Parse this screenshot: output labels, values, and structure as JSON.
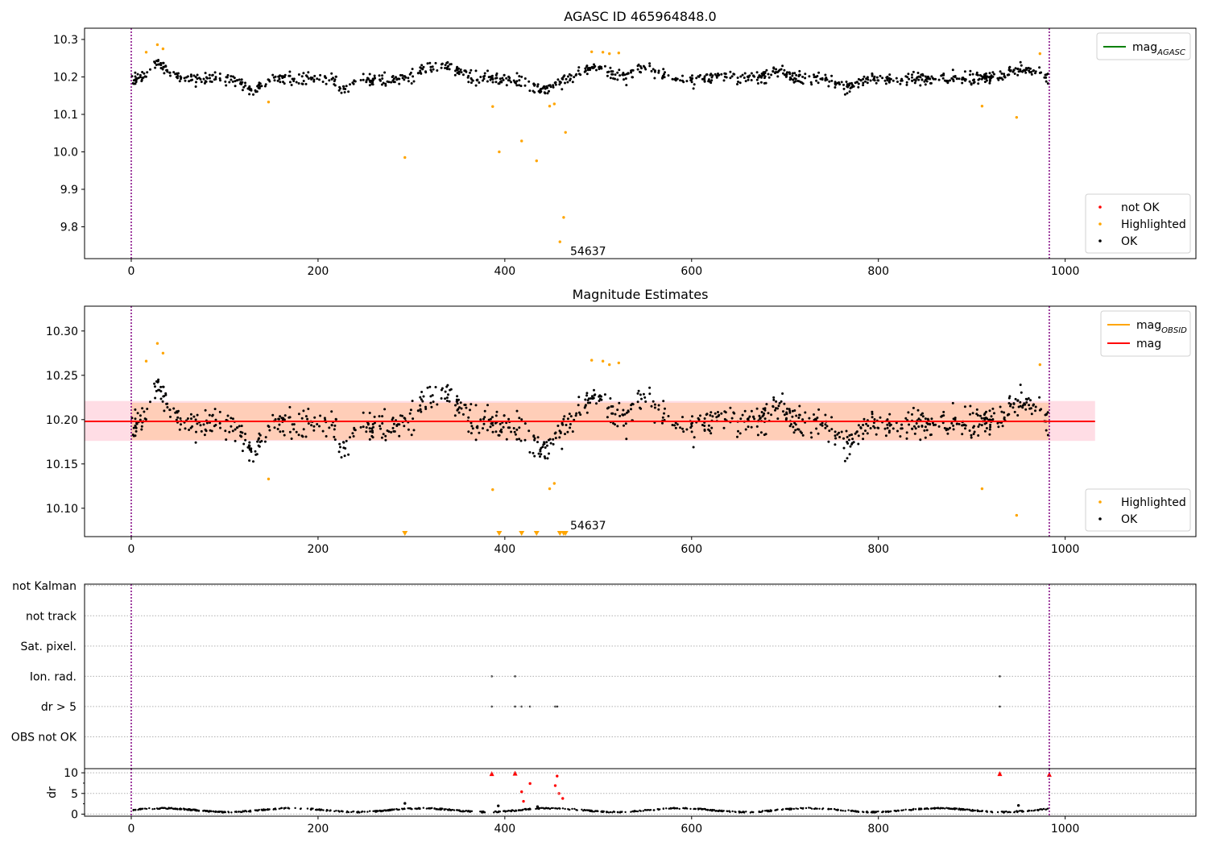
{
  "chart_data": [
    {
      "type": "scatter",
      "title": "AGASC ID 465964848.0",
      "xlim": [
        -50,
        1140
      ],
      "ylim": [
        9.715,
        10.33
      ],
      "xticks": [
        0,
        200,
        400,
        600,
        800,
        1000
      ],
      "yticks": [
        9.8,
        9.9,
        10.0,
        10.1,
        10.2,
        10.3
      ],
      "ytick_decimals": 1,
      "vlines": [
        0,
        983
      ],
      "annotation": {
        "text": "54637",
        "x": 470,
        "y": 9.725
      },
      "legend_lines": [
        {
          "label": "mag",
          "sub": "AGASC",
          "color": "#008000"
        }
      ],
      "legend_markers": [
        {
          "label": "not OK",
          "color": "#ff0000"
        },
        {
          "label": "Highlighted",
          "color": "#ffa500"
        },
        {
          "label": "OK",
          "color": "#000000"
        }
      ],
      "series": [
        {
          "name": "Highlighted",
          "color": "#ffa500",
          "points": [
            [
              16,
              10.266
            ],
            [
              28,
              10.286
            ],
            [
              34,
              10.275
            ],
            [
              147,
              10.133
            ],
            [
              293,
              9.985
            ],
            [
              387,
              10.121
            ],
            [
              394,
              10.0
            ],
            [
              418,
              10.029
            ],
            [
              434,
              9.976
            ],
            [
              448,
              10.122
            ],
            [
              453,
              10.128
            ],
            [
              459,
              9.76
            ],
            [
              463,
              9.825
            ],
            [
              465,
              10.052
            ],
            [
              493,
              10.267
            ],
            [
              505,
              10.266
            ],
            [
              512,
              10.262
            ],
            [
              522,
              10.264
            ],
            [
              911,
              10.122
            ],
            [
              948,
              10.092
            ],
            [
              973,
              10.262
            ]
          ]
        }
      ]
    },
    {
      "type": "scatter",
      "title": "Magnitude Estimates",
      "xlim": [
        -50,
        1140
      ],
      "ylim": [
        10.068,
        10.328
      ],
      "xticks": [
        0,
        200,
        400,
        600,
        800,
        1000
      ],
      "yticks": [
        10.1,
        10.15,
        10.2,
        10.25,
        10.3
      ],
      "ytick_decimals": 2,
      "vlines": [
        0,
        983
      ],
      "annotation": {
        "text": "54637",
        "x": 470,
        "y": 10.076
      },
      "band_outer": {
        "x": [
          -50,
          1032
        ],
        "y": [
          10.176,
          10.221
        ]
      },
      "band_inner": {
        "x": [
          0,
          983
        ],
        "y": [
          10.177,
          10.219
        ]
      },
      "mean_line": {
        "x": [
          -50,
          1032
        ],
        "y": 10.198
      },
      "legend_lines": [
        {
          "label": "mag",
          "sub": "OBSID",
          "color": "#ffa500"
        },
        {
          "label": "mag",
          "sub": "",
          "color": "#ff0000"
        }
      ],
      "legend_markers": [
        {
          "label": "Highlighted",
          "color": "#ffa500"
        },
        {
          "label": "OK",
          "color": "#000000"
        }
      ],
      "lower_limit_markers": [
        293,
        394,
        418,
        434,
        459,
        463,
        465
      ],
      "series": [
        {
          "name": "Highlighted",
          "color": "#ffa500",
          "points": [
            [
              16,
              10.266
            ],
            [
              28,
              10.286
            ],
            [
              34,
              10.275
            ],
            [
              147,
              10.133
            ],
            [
              387,
              10.121
            ],
            [
              448,
              10.122
            ],
            [
              453,
              10.128
            ],
            [
              493,
              10.267
            ],
            [
              505,
              10.266
            ],
            [
              512,
              10.262
            ],
            [
              522,
              10.264
            ],
            [
              911,
              10.122
            ],
            [
              948,
              10.092
            ],
            [
              973,
              10.262
            ]
          ]
        }
      ]
    },
    {
      "type": "scatter",
      "xlim": [
        -50,
        1140
      ],
      "categories": [
        "OBS not OK",
        "dr > 5",
        "Ion. rad.",
        "Sat. pixel.",
        "not track",
        "not Kalman"
      ],
      "vlines": [
        0,
        983
      ],
      "series": [
        {
          "name": "dr > 5",
          "points": [
            386,
            411,
            418,
            427,
            454,
            456,
            930
          ]
        },
        {
          "name": "Ion. rad.",
          "points": [
            386,
            411,
            930
          ]
        }
      ]
    },
    {
      "type": "scatter",
      "ylabel": "dr",
      "xlim": [
        -50,
        1140
      ],
      "ylim": [
        -0.5,
        11
      ],
      "xticks": [
        0,
        200,
        400,
        600,
        800,
        1000
      ],
      "yticks": [
        0,
        5,
        10
      ],
      "vlines": [
        0,
        983
      ],
      "series": [
        {
          "name": "red",
          "color": "#ff0000",
          "points": [
            [
              386,
              9.8
            ],
            [
              411,
              9.9
            ],
            [
              418,
              5.4
            ],
            [
              420,
              3.1
            ],
            [
              427,
              7.4
            ],
            [
              454,
              6.9
            ],
            [
              456,
              9.2
            ],
            [
              458,
              5.0
            ],
            [
              462,
              3.8
            ],
            [
              930,
              9.8
            ],
            [
              983,
              9.6
            ]
          ]
        },
        {
          "name": "black-outliers",
          "color": "#000000",
          "points": [
            [
              293,
              2.6
            ],
            [
              393,
              2.0
            ],
            [
              435,
              1.8
            ],
            [
              950,
              2.1
            ]
          ]
        }
      ]
    }
  ]
}
